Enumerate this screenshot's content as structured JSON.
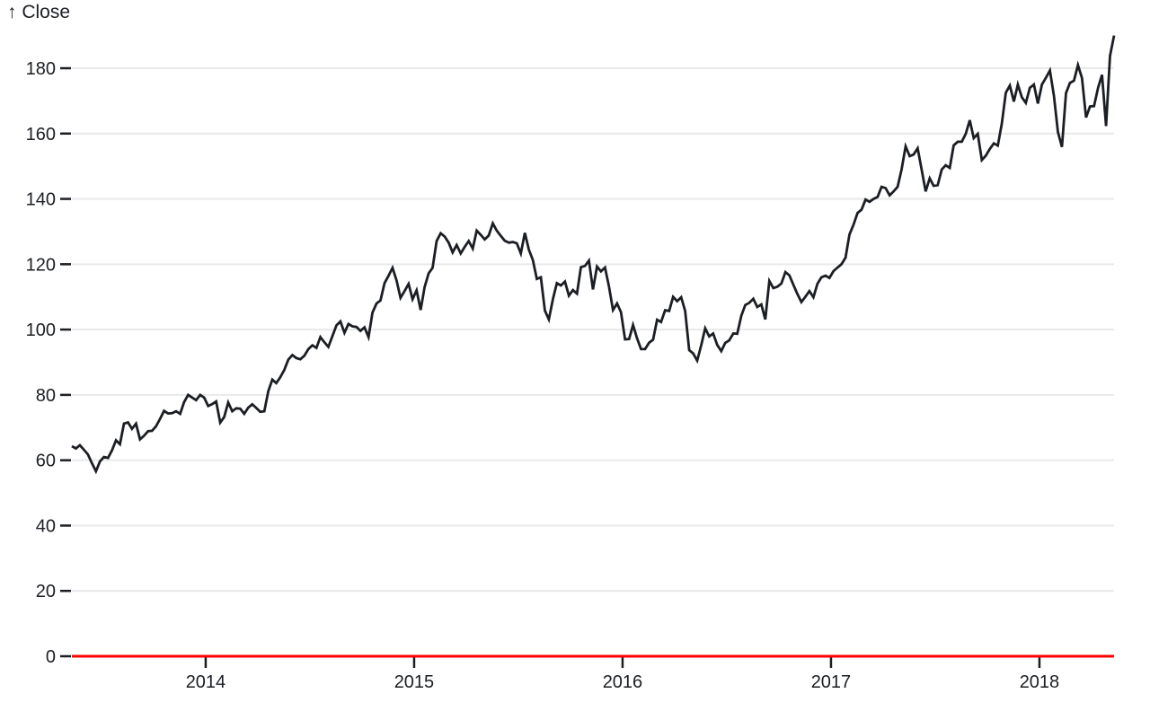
{
  "colors": {
    "background": "#ffffff",
    "grid": "#e9e9e9",
    "axis": "#1b1e23",
    "line": "#1b1e23",
    "zero_rule": "#ff0000"
  },
  "chart_data": {
    "type": "line",
    "title": "",
    "xlabel": "",
    "ylabel": "↑ Close",
    "legend_position": "none",
    "grid": true,
    "x_axis": {
      "domain": [
        2013.358,
        2018.358
      ],
      "tick_values": [
        2014,
        2015,
        2016,
        2017,
        2018
      ],
      "tick_labels": [
        "2014",
        "2015",
        "2016",
        "2017",
        "2018"
      ]
    },
    "y_axis": {
      "domain": [
        0,
        180
      ],
      "tick_values": [
        0,
        20,
        40,
        60,
        80,
        100,
        120,
        140,
        160,
        180
      ],
      "tick_labels": [
        "0",
        "20",
        "40",
        "60",
        "80",
        "100",
        "120",
        "140",
        "160",
        "180"
      ]
    },
    "annotations": [
      {
        "type": "rule",
        "axis": "y",
        "value": 0,
        "color": "#ff0000"
      }
    ],
    "series": [
      {
        "name": "Close",
        "color": "#1b1e23",
        "x_sampling": "evenly spaced (~weekly) across x domain 2013.358 to 2018.358",
        "values": [
          64.3,
          63.6,
          64.6,
          63.2,
          61.8,
          59.1,
          56.6,
          59.6,
          61.0,
          60.7,
          63.0,
          66.1,
          64.9,
          71.2,
          71.6,
          69.6,
          71.2,
          66.4,
          67.5,
          68.9,
          69.0,
          70.4,
          72.7,
          75.1,
          74.3,
          74.4,
          75.0,
          74.2,
          77.8,
          80.0,
          79.2,
          78.4,
          80.0,
          79.2,
          76.6,
          77.2,
          78.0,
          71.5,
          73.2,
          77.7,
          75.0,
          75.9,
          75.8,
          74.2,
          76.1,
          77.1,
          76.0,
          74.8,
          75.0,
          81.1,
          84.7,
          83.6,
          85.4,
          87.7,
          90.8,
          92.2,
          91.3,
          90.9,
          92.0,
          94.0,
          95.2,
          94.4,
          97.7,
          96.1,
          94.7,
          98.0,
          101.3,
          102.5,
          99.0,
          101.7,
          101.0,
          100.8,
          99.6,
          100.7,
          97.7,
          105.2,
          108.0,
          108.9,
          114.2,
          116.5,
          118.9,
          115.0,
          109.7,
          111.8,
          114.0,
          109.3,
          112.0,
          106.0,
          113.0,
          117.2,
          118.9,
          127.1,
          129.5,
          128.5,
          126.6,
          123.6,
          125.9,
          123.3,
          125.3,
          127.1,
          124.8,
          130.3,
          129.0,
          127.6,
          128.8,
          132.5,
          130.3,
          128.7,
          127.2,
          126.6,
          126.8,
          126.4,
          123.3,
          129.6,
          124.5,
          121.3,
          115.5,
          116.0,
          105.8,
          103.1,
          109.3,
          114.2,
          113.5,
          114.7,
          110.4,
          112.1,
          111.0,
          119.1,
          119.5,
          121.1,
          112.3,
          119.3,
          117.8,
          119.0,
          113.2,
          106.0,
          108.0,
          105.3,
          97.0,
          97.1,
          101.4,
          97.3,
          94.0,
          94.0,
          96.0,
          96.9,
          103.0,
          102.3,
          105.9,
          105.7,
          110.0,
          108.7,
          109.9,
          105.7,
          93.7,
          92.7,
          90.5,
          95.2,
          100.4,
          97.9,
          98.8,
          95.3,
          93.4,
          95.9,
          96.7,
          98.8,
          98.7,
          104.2,
          107.5,
          108.2,
          109.4,
          106.9,
          107.7,
          103.1,
          114.9,
          112.7,
          113.1,
          114.1,
          117.6,
          116.6,
          113.7,
          110.9,
          108.4,
          110.1,
          111.8,
          109.9,
          114.0,
          116.0,
          116.5,
          115.8,
          117.9,
          119.0,
          120.0,
          122.0,
          129.1,
          132.1,
          135.7,
          136.7,
          139.8,
          139.1,
          140.0,
          140.6,
          143.7,
          143.3,
          141.1,
          142.3,
          143.7,
          149.0,
          156.1,
          153.1,
          153.6,
          155.5,
          149.0,
          142.3,
          146.3,
          144.0,
          144.2,
          149.0,
          150.3,
          149.5,
          156.4,
          157.5,
          157.5,
          159.9,
          164.1,
          158.6,
          159.9,
          151.9,
          153.2,
          155.3,
          157.0,
          156.3,
          163.1,
          172.5,
          174.7,
          169.8,
          175.0,
          171.1,
          169.4,
          174.0,
          175.0,
          169.2,
          175.0,
          177.1,
          179.3,
          171.5,
          160.5,
          155.9,
          172.4,
          175.5,
          176.2,
          181.0,
          177.0,
          164.9,
          168.3,
          168.4,
          174.0,
          178.0,
          162.3,
          183.8,
          190.0
        ]
      }
    ]
  }
}
